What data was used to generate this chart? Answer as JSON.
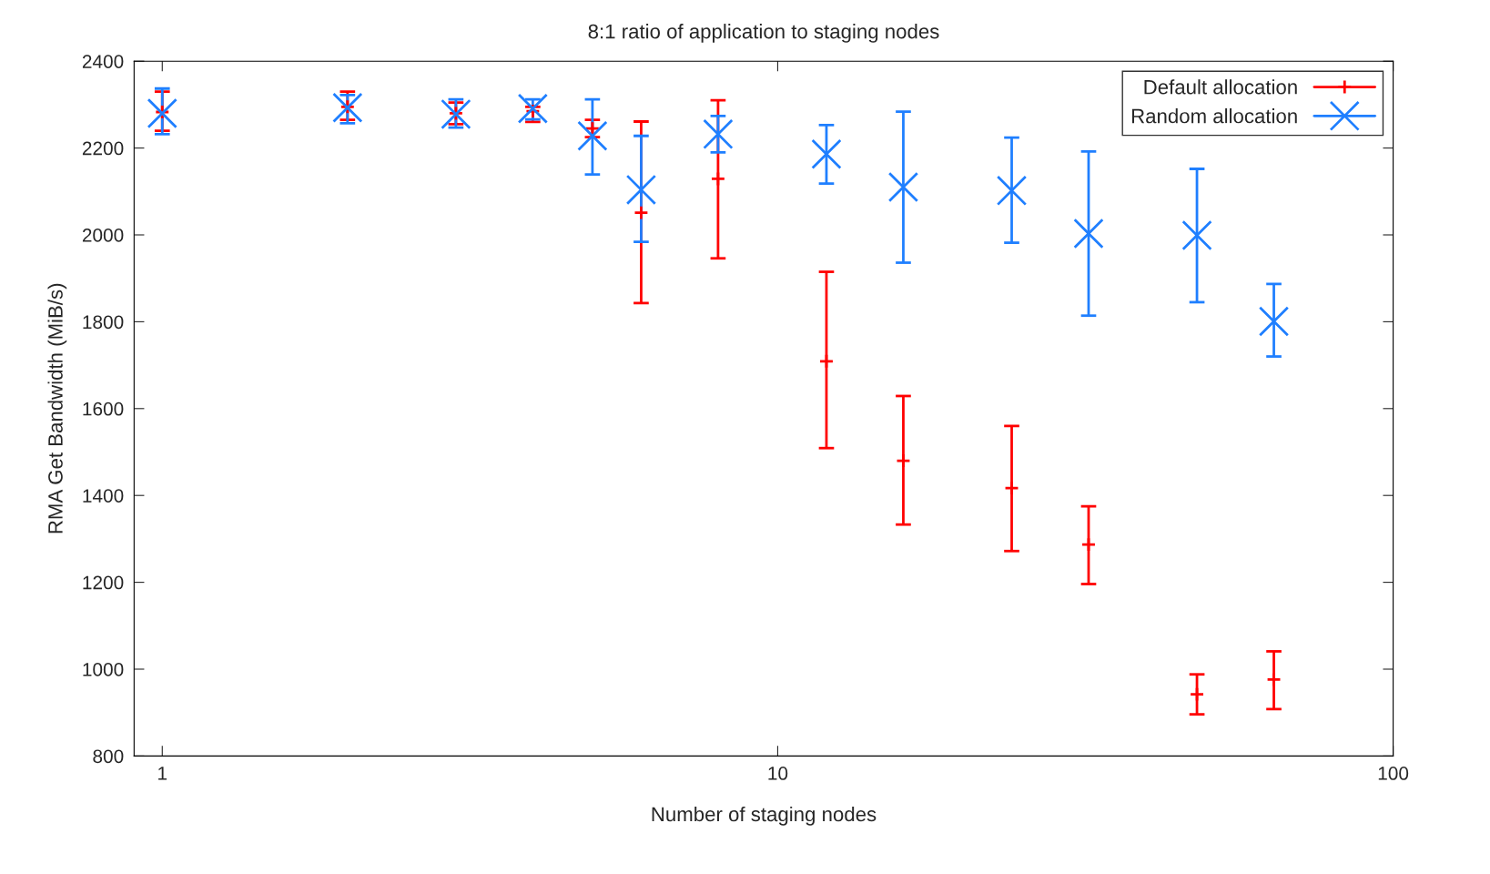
{
  "chart_data": {
    "type": "scatter",
    "title": "8:1 ratio of application to staging nodes",
    "xlabel": "Number of staging nodes",
    "ylabel": "RMA Get Bandwidth (MiB/s)",
    "x": [
      1,
      2,
      3,
      4,
      5,
      6,
      8,
      12,
      16,
      24,
      32,
      48,
      64
    ],
    "series": [
      {
        "name": "Default allocation",
        "color": "#ff0000",
        "marker": "plus",
        "values": [
          2283,
          2295,
          2280,
          2285,
          2245,
          2051,
          2129,
          1709,
          1480,
          1417,
          1287,
          942,
          976
        ],
        "errors": [
          [
            2240,
            2330
          ],
          [
            2265,
            2330
          ],
          [
            2255,
            2305
          ],
          [
            2260,
            2295
          ],
          [
            2225,
            2265
          ],
          [
            1843,
            2261
          ],
          [
            1946,
            2310
          ],
          [
            1509,
            1915
          ],
          [
            1333,
            1629
          ],
          [
            1272,
            1560
          ],
          [
            1196,
            1375
          ],
          [
            896,
            988
          ],
          [
            908,
            1041
          ]
        ]
      },
      {
        "name": "Random allocation",
        "color": "#1f7fff",
        "marker": "cross",
        "values": [
          2280,
          2293,
          2278,
          2291,
          2228,
          2104,
          2232,
          2186,
          2110,
          2102,
          2003,
          1999,
          1801
        ],
        "errors": [
          [
            2232,
            2337
          ],
          [
            2257,
            2322
          ],
          [
            2247,
            2312
          ],
          [
            2266,
            2312
          ],
          [
            2139,
            2312
          ],
          [
            1984,
            2228
          ],
          [
            2190,
            2274
          ],
          [
            2118,
            2253
          ],
          [
            1936,
            2284
          ],
          [
            1982,
            2224
          ],
          [
            1814,
            2192
          ],
          [
            1845,
            2152
          ],
          [
            1720,
            1887
          ]
        ]
      }
    ],
    "log": "x",
    "xlim": [
      0.9,
      100
    ],
    "xticks": [
      1,
      10,
      100
    ],
    "ylim": [
      800,
      2400
    ],
    "yticks": [
      800,
      1000,
      1200,
      1400,
      1600,
      1800,
      2000,
      2200,
      2400
    ],
    "grid": false,
    "legend": "top right"
  }
}
